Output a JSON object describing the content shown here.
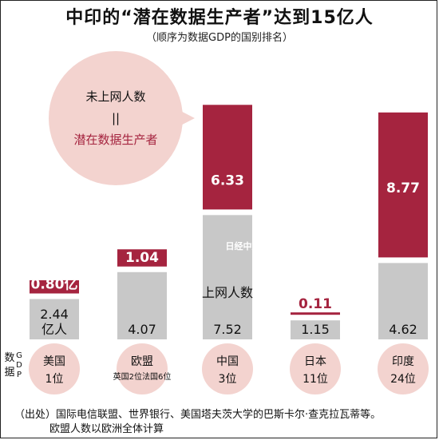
{
  "colors": {
    "upper": "#a5243f",
    "lower": "#c8c8c8",
    "bubble": "#f3d3cf",
    "category_circle": "#f3d3cf"
  },
  "chart_data": {
    "type": "bar",
    "title": "中印的“潜在数据生产者”达到15亿人",
    "subtitle": "（顺序为数据GDP的国别排名）",
    "series": [
      {
        "name": "上网人数",
        "values": [
          2.44,
          4.07,
          7.52,
          1.15,
          4.62
        ],
        "labels": [
          "2.44\n亿人",
          "4.07",
          "7.52",
          "1.15",
          "4.62"
        ]
      },
      {
        "name": "未上网人数",
        "values": [
          0.8,
          1.04,
          6.33,
          0.11,
          8.77
        ],
        "labels": [
          "0.80亿",
          "1.04",
          "6.33",
          "0.11",
          "8.77"
        ]
      }
    ],
    "categories": [
      {
        "name": "美国",
        "rank": "1位",
        "note": ""
      },
      {
        "name": "欧盟",
        "rank": "",
        "note": "英国2位法国6位"
      },
      {
        "name": "中国",
        "rank": "3位",
        "note": ""
      },
      {
        "name": "日本",
        "rank": "11位",
        "note": ""
      },
      {
        "name": "印度",
        "rank": "24位",
        "note": ""
      }
    ],
    "bubble": {
      "line1": "未上网人数",
      "line2": "||",
      "line3": "潜在数据生产者"
    },
    "inline_label_lower": "上网人数",
    "side_label": {
      "main": "数据",
      "small": "GDP"
    },
    "watermark": "日经中文网"
  },
  "source": {
    "line1": "（出处）国际电信联盟、世界银行、美国塔夫茨大学的巴斯卡尔·查克拉瓦蒂等。",
    "line2": "欧盟人数以欧洲全体计算"
  }
}
